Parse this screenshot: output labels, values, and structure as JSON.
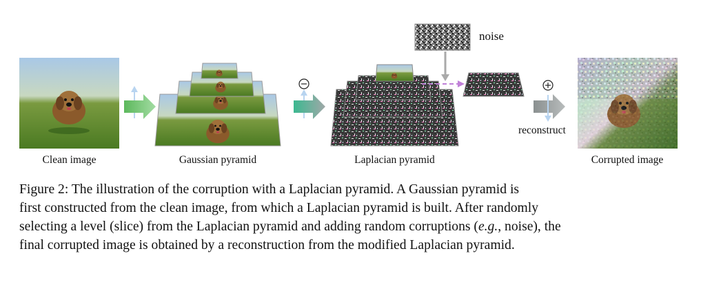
{
  "figure": {
    "labels": {
      "clean": "Clean image",
      "gaussian": "Gaussian pyramid",
      "laplacian": "Laplacian pyramid",
      "corrupted": "Corrupted image",
      "noise": "noise",
      "reconstruct": "reconstruct"
    },
    "colors": {
      "arrow_green": "#7ec87e",
      "arrow_gray": "#9aa0a0",
      "dash_purple": "#c080d8",
      "up_arrow_blue": "#b8d4f0",
      "grass": "#5c8a30",
      "sky": "#9ec0e0"
    },
    "icons": [
      "up-arrow-icon",
      "minus-circle-icon",
      "plus-circle-icon",
      "right-arrow-icon",
      "down-arrow-icon"
    ]
  },
  "caption": {
    "figure_label": "Figure 2:",
    "line1": "The illustration of the corruption with a Laplacian pyramid.  A Gaussian pyramid is",
    "line2": "first constructed from the clean image, from which a Laplacian pyramid is built.  After randomly",
    "line3_a": "selecting a level (slice) from the Laplacian pyramid and adding random corruptions (",
    "line3_eg": "e.g.",
    "line3_b": ", noise), the",
    "line4": "final corrupted image is obtained by a reconstruction from the modified Laplacian pyramid."
  }
}
